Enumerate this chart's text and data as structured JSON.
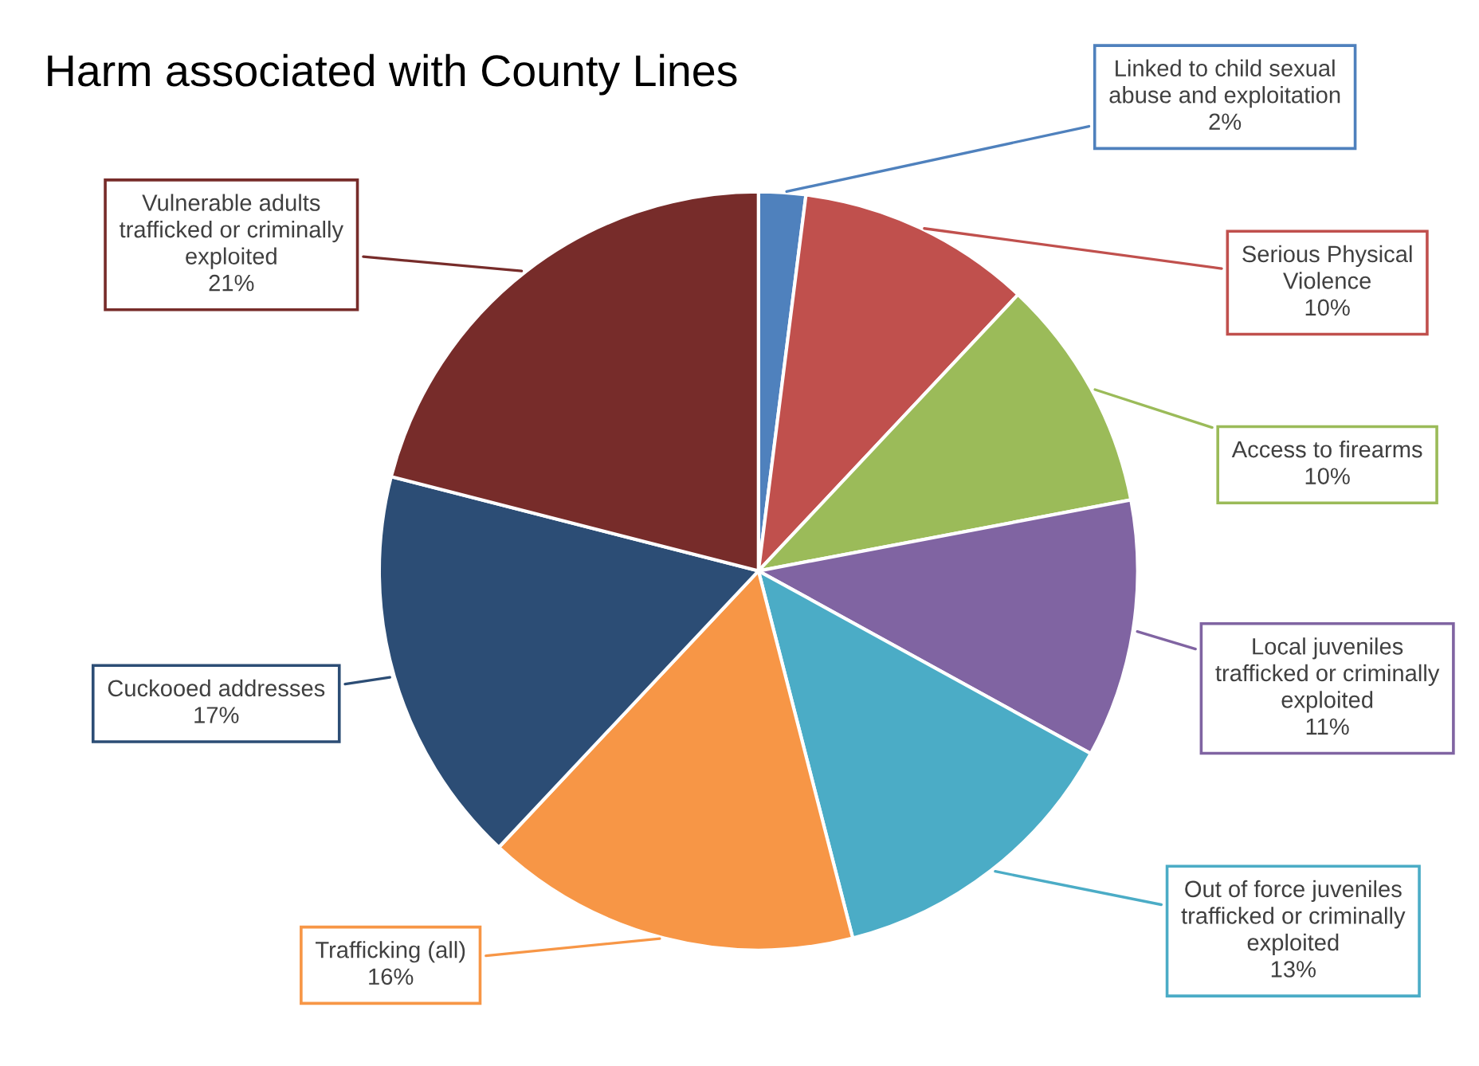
{
  "chart_data": {
    "type": "pie",
    "title": "Harm associated with County Lines",
    "categories": [
      "Linked to child sexual abuse and exploitation",
      "Serious Physical Violence",
      "Access to firearms",
      "Local juveniles trafficked or criminally exploited",
      "Out of force juveniles trafficked or criminally exploited",
      "Trafficking (all)",
      "Cuckooed addresses",
      "Vulnerable adults trafficked or criminally exploited"
    ],
    "values": [
      2,
      10,
      10,
      11,
      13,
      16,
      17,
      21
    ],
    "value_labels": [
      "2%",
      "10%",
      "10%",
      "11%",
      "13%",
      "16%",
      "17%",
      "21%"
    ],
    "colors": [
      "#4f81bd",
      "#c0504d",
      "#9bbb59",
      "#8064a2",
      "#4bacc6",
      "#f79646",
      "#2c4d75",
      "#772c2a"
    ],
    "legend": false
  }
}
